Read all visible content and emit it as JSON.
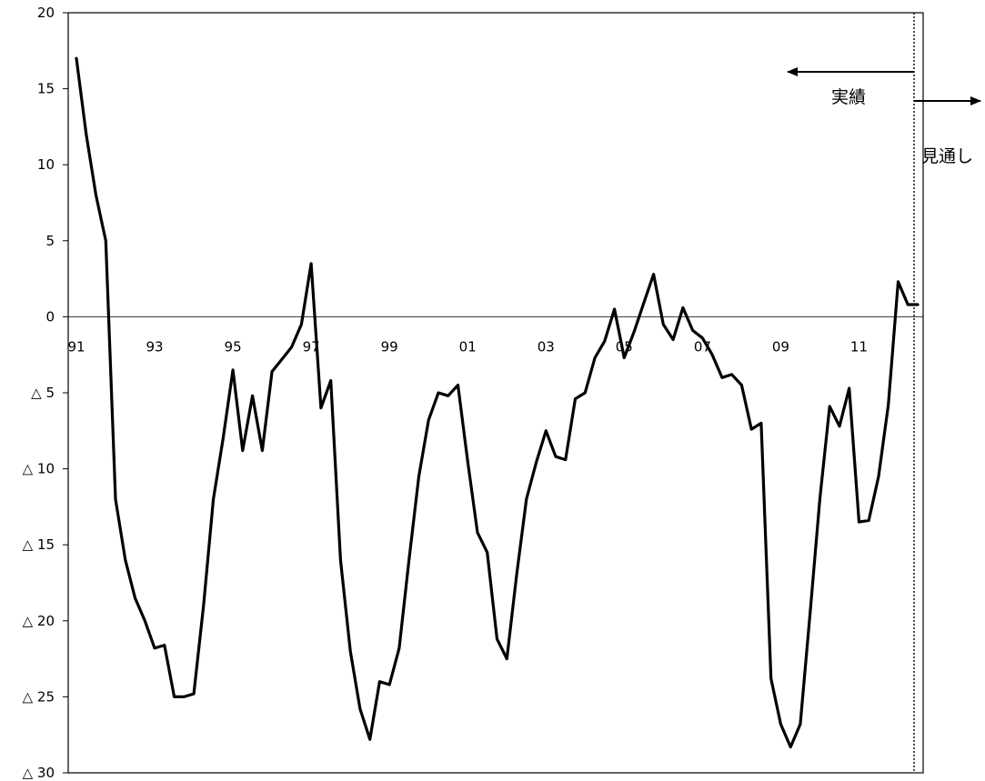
{
  "chart_data": {
    "type": "line",
    "title": "",
    "xlabel": "",
    "ylabel": "",
    "ylim": [
      -30,
      20
    ],
    "y_ticks": [
      20,
      15,
      10,
      5,
      0,
      -5,
      -10,
      -15,
      -20,
      -25,
      -30
    ],
    "y_tick_labels": [
      "20",
      "15",
      "10",
      "5",
      "0",
      "△ 5",
      "△ 10",
      "△ 15",
      "△ 20",
      "△ 25",
      "△ 30"
    ],
    "x_tick_labels": [
      "91",
      "93",
      "95",
      "97",
      "99",
      "01",
      "03",
      "05",
      "07",
      "09",
      "11"
    ],
    "x_tick_years": [
      1991,
      1993,
      1995,
      1997,
      1999,
      2001,
      2003,
      2005,
      2007,
      2009,
      2011
    ],
    "grid": false,
    "zero_line": true,
    "divider_year": 2012.5,
    "annotations": {
      "actual": "実績",
      "outlook": "見通し"
    },
    "series": [
      {
        "x": [
          1991.0,
          1991.25,
          1991.5,
          1991.75,
          1992.0,
          1992.25,
          1992.5,
          1992.75,
          1993.0,
          1993.25,
          1993.5,
          1993.75,
          1994.0,
          1994.25,
          1994.5,
          1994.75,
          1995.0,
          1995.25,
          1995.5,
          1995.75,
          1996.0,
          1996.25,
          1996.5,
          1996.75,
          1997.0,
          1997.25,
          1997.5,
          1997.75,
          1998.0,
          1998.25,
          1998.5,
          1998.75,
          1999.0,
          1999.25,
          1999.5,
          1999.75,
          2000.0,
          2000.25,
          2000.5,
          2000.75,
          2001.0,
          2001.25,
          2001.5,
          2001.75,
          2002.0,
          2002.25,
          2002.5,
          2002.75,
          2003.0,
          2003.25,
          2003.5,
          2003.75,
          2004.0,
          2004.25,
          2004.5,
          2004.75,
          2005.0,
          2005.25,
          2005.5,
          2005.75,
          2006.0,
          2006.25,
          2006.5,
          2006.75,
          2007.0,
          2007.25,
          2007.5,
          2007.75,
          2008.0,
          2008.25,
          2008.5,
          2008.75,
          2009.0,
          2009.25,
          2009.5,
          2009.75,
          2010.0,
          2010.25,
          2010.5,
          2010.75,
          2011.0,
          2011.25,
          2011.5,
          2011.75,
          2012.0,
          2012.25,
          2012.5
        ],
        "y": [
          17.0,
          12.0,
          8.0,
          5.0,
          -12.0,
          -16.0,
          -18.5,
          -20.0,
          -21.8,
          -21.6,
          -25.0,
          -25.0,
          -24.8,
          -19.0,
          -12.0,
          -8.0,
          -3.5,
          -8.8,
          -5.2,
          -8.8,
          -3.6,
          -2.8,
          -2.0,
          -0.5,
          3.5,
          -6.0,
          -4.2,
          -16.0,
          -22.0,
          -25.8,
          -27.8,
          -24.0,
          -24.2,
          -21.8,
          -16.0,
          -10.5,
          -6.8,
          -5.0,
          -5.2,
          -4.5,
          -9.5,
          -14.2,
          -15.5,
          -21.2,
          -22.5,
          -17.0,
          -12.0,
          -9.6,
          -7.5,
          -9.2,
          -9.4,
          -5.4,
          -5.0,
          -2.7,
          -1.6,
          0.5,
          -2.7,
          -1.0,
          0.9,
          2.8,
          -0.5,
          -1.5,
          0.6,
          -0.9,
          -1.4,
          -2.5,
          -4.0,
          -3.8,
          -4.5,
          -7.4,
          -7.0,
          -23.8,
          -26.8,
          -28.3,
          -26.8,
          -19.5,
          -12.0,
          -5.9,
          -7.2,
          -4.7,
          -13.5,
          -13.4,
          -10.5,
          -5.8,
          2.3,
          0.8,
          0.8
        ]
      }
    ]
  }
}
